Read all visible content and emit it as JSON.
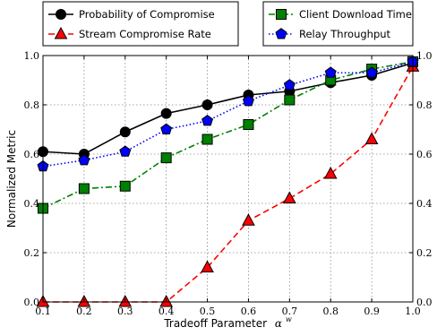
{
  "chart_data": {
    "type": "line",
    "xlabel": "Tradeoff Parameter",
    "xlabel_symbol": "α",
    "xlabel_superscript": "w",
    "ylabel": "Normalized Metric",
    "xlim": [
      0.1,
      1.0
    ],
    "ylim": [
      0.0,
      1.0
    ],
    "grid": true,
    "x_ticks": [
      "0.1",
      "0.2",
      "0.3",
      "0.4",
      "0.5",
      "0.6",
      "0.7",
      "0.8",
      "0.9",
      "1.0"
    ],
    "y_ticks": [
      "0.0",
      "0.2",
      "0.4",
      "0.6",
      "0.8",
      "1.0"
    ],
    "legend_placement": "above plot, two groups",
    "x": [
      0.1,
      0.2,
      0.3,
      0.4,
      0.5,
      0.6,
      0.7,
      0.8,
      0.9,
      1.0
    ],
    "series": [
      {
        "name": "Probability of Compromise",
        "color": "#000000",
        "marker": "circle",
        "line": "solid",
        "values": [
          0.61,
          0.6,
          0.69,
          0.765,
          0.8,
          0.84,
          0.855,
          0.89,
          0.92,
          0.97
        ]
      },
      {
        "name": "Stream Compromise Rate",
        "color": "#ff0000",
        "marker": "triangle",
        "line": "dashed",
        "values": [
          0.0,
          0.0,
          0.0,
          0.0,
          0.14,
          0.33,
          0.42,
          0.52,
          0.66,
          0.955
        ]
      },
      {
        "name": "Client Download Time",
        "color": "#008000",
        "marker": "square",
        "line": "dashdot",
        "values": [
          0.38,
          0.46,
          0.47,
          0.585,
          0.66,
          0.72,
          0.82,
          0.9,
          0.945,
          0.975
        ]
      },
      {
        "name": "Relay Throughput",
        "color": "#0000ff",
        "marker": "pentagon",
        "line": "dotted",
        "values": [
          0.55,
          0.575,
          0.61,
          0.7,
          0.735,
          0.815,
          0.88,
          0.93,
          0.93,
          0.975
        ]
      }
    ]
  }
}
